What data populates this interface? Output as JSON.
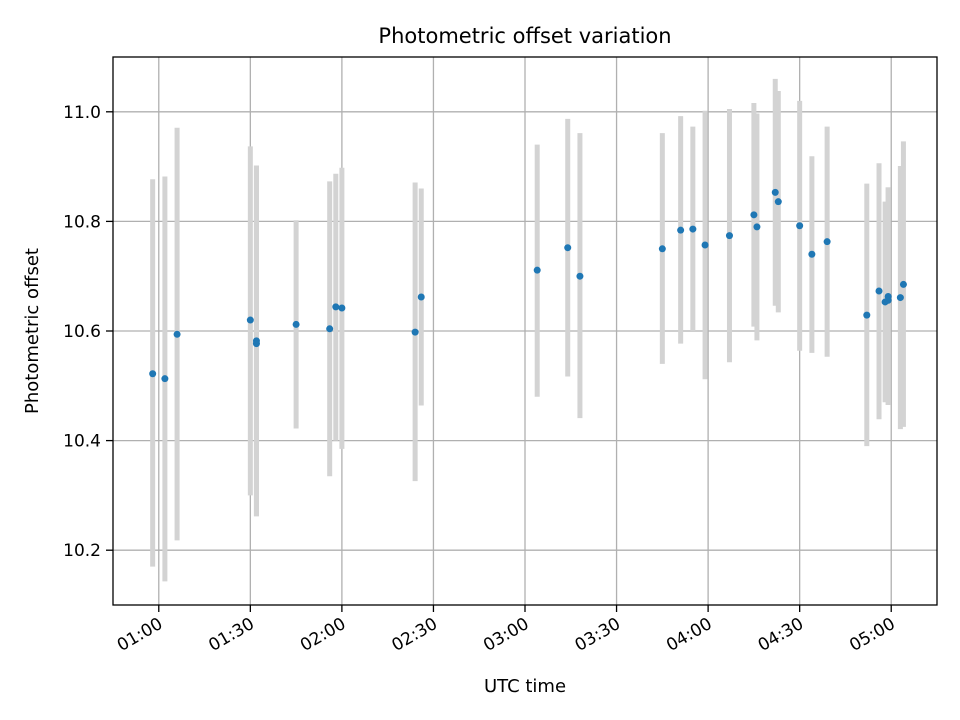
{
  "chart_data": {
    "type": "scatter",
    "title": "Photometric offset variation",
    "xlabel": "UTC time",
    "ylabel": "Photometric offset",
    "xlim": [
      "00:45",
      "05:15"
    ],
    "ylim": [
      10.1,
      11.1
    ],
    "grid": true,
    "x_ticks": [
      "01:00",
      "01:30",
      "02:00",
      "02:30",
      "03:00",
      "03:30",
      "04:00",
      "04:30",
      "05:00"
    ],
    "y_ticks": [
      "10.2",
      "10.4",
      "10.6",
      "10.8",
      "11.0"
    ],
    "colors": {
      "marker": "#1f77b4",
      "errorbar": "#d3d3d3",
      "grid": "#b0b0b0"
    },
    "points": [
      {
        "x": "00:58",
        "y": 10.522,
        "yerr_low": 10.17,
        "yerr_high": 10.877
      },
      {
        "x": "01:02",
        "y": 10.513,
        "yerr_low": 10.143,
        "yerr_high": 10.882
      },
      {
        "x": "01:06",
        "y": 10.594,
        "yerr_low": 10.218,
        "yerr_high": 10.971
      },
      {
        "x": "01:30",
        "y": 10.62,
        "yerr_low": 10.3,
        "yerr_high": 10.937
      },
      {
        "x": "01:32",
        "y": 10.582,
        "yerr_low": 10.262,
        "yerr_high": 10.902
      },
      {
        "x": "01:32",
        "y": 10.577,
        "yerr_low": 10.262,
        "yerr_high": 10.902
      },
      {
        "x": "01:45",
        "y": 10.612,
        "yerr_low": 10.422,
        "yerr_high": 10.802
      },
      {
        "x": "01:56",
        "y": 10.604,
        "yerr_low": 10.335,
        "yerr_high": 10.873
      },
      {
        "x": "01:58",
        "y": 10.644,
        "yerr_low": 10.4,
        "yerr_high": 10.887
      },
      {
        "x": "02:00",
        "y": 10.642,
        "yerr_low": 10.385,
        "yerr_high": 10.898
      },
      {
        "x": "02:24",
        "y": 10.598,
        "yerr_low": 10.326,
        "yerr_high": 10.871
      },
      {
        "x": "02:26",
        "y": 10.662,
        "yerr_low": 10.464,
        "yerr_high": 10.86
      },
      {
        "x": "03:04",
        "y": 10.711,
        "yerr_low": 10.48,
        "yerr_high": 10.94
      },
      {
        "x": "03:14",
        "y": 10.752,
        "yerr_low": 10.517,
        "yerr_high": 10.987
      },
      {
        "x": "03:18",
        "y": 10.7,
        "yerr_low": 10.441,
        "yerr_high": 10.961
      },
      {
        "x": "03:45",
        "y": 10.75,
        "yerr_low": 10.54,
        "yerr_high": 10.961
      },
      {
        "x": "03:51",
        "y": 10.784,
        "yerr_low": 10.577,
        "yerr_high": 10.992
      },
      {
        "x": "03:55",
        "y": 10.786,
        "yerr_low": 10.6,
        "yerr_high": 10.973
      },
      {
        "x": "03:59",
        "y": 10.757,
        "yerr_low": 10.512,
        "yerr_high": 11.002
      },
      {
        "x": "04:07",
        "y": 10.774,
        "yerr_low": 10.543,
        "yerr_high": 11.005
      },
      {
        "x": "04:15",
        "y": 10.812,
        "yerr_low": 10.608,
        "yerr_high": 11.016
      },
      {
        "x": "04:16",
        "y": 10.79,
        "yerr_low": 10.583,
        "yerr_high": 10.997
      },
      {
        "x": "04:22",
        "y": 10.853,
        "yerr_low": 10.646,
        "yerr_high": 11.06
      },
      {
        "x": "04:23",
        "y": 10.836,
        "yerr_low": 10.634,
        "yerr_high": 11.038
      },
      {
        "x": "04:30",
        "y": 10.792,
        "yerr_low": 10.564,
        "yerr_high": 11.02
      },
      {
        "x": "04:34",
        "y": 10.74,
        "yerr_low": 10.56,
        "yerr_high": 10.919
      },
      {
        "x": "04:39",
        "y": 10.763,
        "yerr_low": 10.553,
        "yerr_high": 10.973
      },
      {
        "x": "04:52",
        "y": 10.629,
        "yerr_low": 10.39,
        "yerr_high": 10.869
      },
      {
        "x": "04:56",
        "y": 10.673,
        "yerr_low": 10.439,
        "yerr_high": 10.906
      },
      {
        "x": "04:58",
        "y": 10.653,
        "yerr_low": 10.47,
        "yerr_high": 10.836
      },
      {
        "x": "04:59",
        "y": 10.663,
        "yerr_low": 10.465,
        "yerr_high": 10.862
      },
      {
        "x": "04:59",
        "y": 10.656,
        "yerr_low": 10.465,
        "yerr_high": 10.862
      },
      {
        "x": "05:03",
        "y": 10.661,
        "yerr_low": 10.421,
        "yerr_high": 10.901
      },
      {
        "x": "05:04",
        "y": 10.685,
        "yerr_low": 10.425,
        "yerr_high": 10.946
      }
    ]
  }
}
